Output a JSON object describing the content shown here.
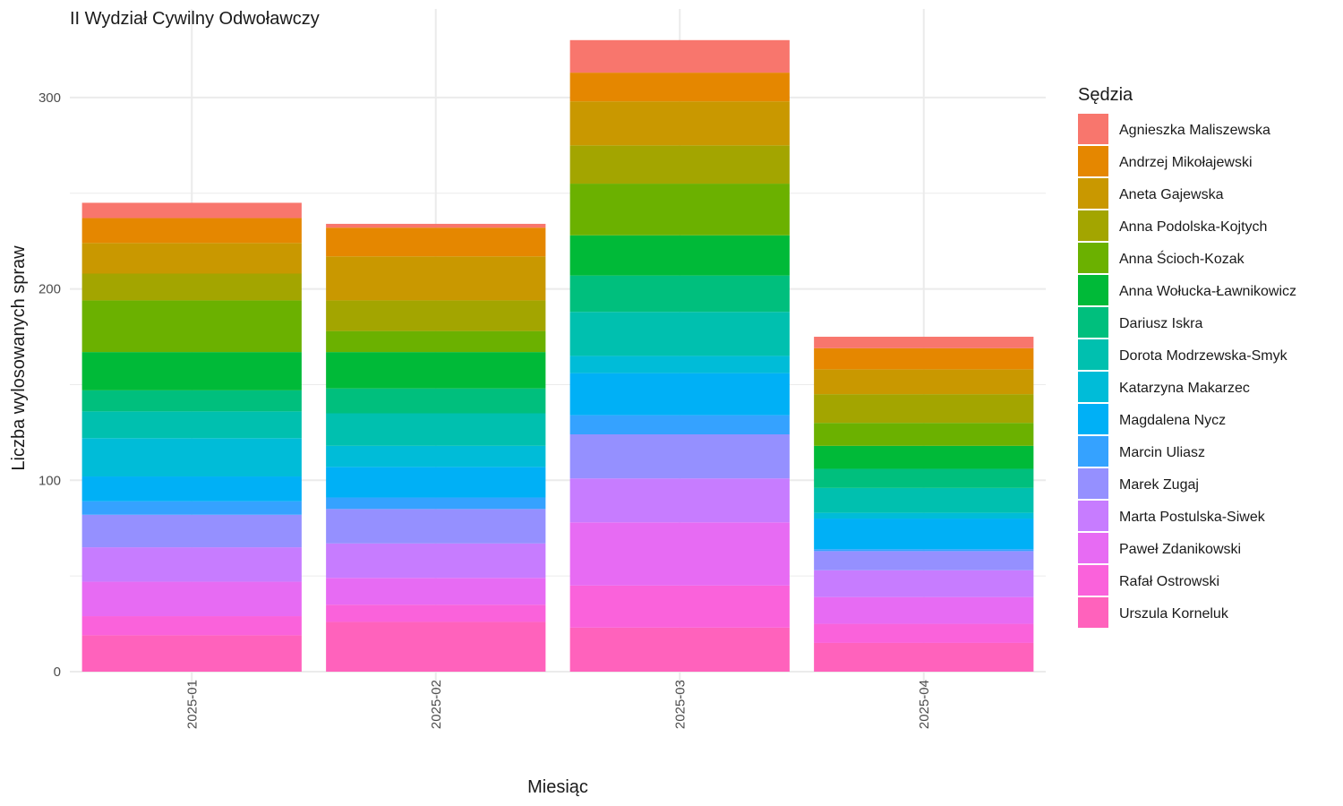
{
  "chart_data": {
    "type": "bar",
    "stacked": true,
    "title": "II Wydział Cywilny Odwoławczy",
    "xlabel": "Miesiąc",
    "ylabel": "Liczba wylosowanych spraw",
    "ylim": [
      0,
      330
    ],
    "yticks": [
      0,
      100,
      200,
      300
    ],
    "grid": true,
    "legend_title": "Sędzia",
    "legend_position": "right",
    "categories": [
      "2025-01",
      "2025-02",
      "2025-03",
      "2025-04"
    ],
    "series": [
      {
        "name": "Agnieszka Maliszewska",
        "color": "#F8766D",
        "values": [
          8,
          2,
          17,
          6
        ]
      },
      {
        "name": "Andrzej Mikołajewski",
        "color": "#E58700",
        "values": [
          13,
          15,
          15,
          11
        ]
      },
      {
        "name": "Aneta Gajewska",
        "color": "#C99800",
        "values": [
          16,
          23,
          23,
          13
        ]
      },
      {
        "name": "Anna Podolska-Kojtych",
        "color": "#A3A500",
        "values": [
          14,
          16,
          20,
          15
        ]
      },
      {
        "name": "Anna Ścioch-Kozak",
        "color": "#6BB100",
        "values": [
          27,
          11,
          27,
          12
        ]
      },
      {
        "name": "Anna Wołucka-Ławnikowicz",
        "color": "#00BA38",
        "values": [
          20,
          19,
          21,
          12
        ]
      },
      {
        "name": "Dariusz Iskra",
        "color": "#00BF7D",
        "values": [
          11,
          13,
          19,
          10
        ]
      },
      {
        "name": "Dorota Modrzewska-Smyk",
        "color": "#00C0AF",
        "values": [
          14,
          17,
          23,
          13
        ]
      },
      {
        "name": "Katarzyna Makarzec",
        "color": "#00BCD8",
        "values": [
          20,
          11,
          9,
          3
        ]
      },
      {
        "name": "Magdalena Nycz",
        "color": "#00B0F6",
        "values": [
          13,
          16,
          22,
          16
        ]
      },
      {
        "name": "Marcin Uliasz",
        "color": "#35A2FF",
        "values": [
          7,
          6,
          10,
          1
        ]
      },
      {
        "name": "Marek Zugaj",
        "color": "#9590FF",
        "values": [
          17,
          18,
          23,
          10
        ]
      },
      {
        "name": "Marta Postulska-Siwek",
        "color": "#C77CFF",
        "values": [
          18,
          18,
          23,
          14
        ]
      },
      {
        "name": "Paweł Zdanikowski",
        "color": "#E76BF3",
        "values": [
          18,
          14,
          33,
          14
        ]
      },
      {
        "name": "Rafał Ostrowski",
        "color": "#FA62DB",
        "values": [
          10,
          9,
          22,
          10
        ]
      },
      {
        "name": "Urszula Korneluk",
        "color": "#FF62BC",
        "values": [
          19,
          26,
          23,
          15
        ]
      }
    ]
  }
}
